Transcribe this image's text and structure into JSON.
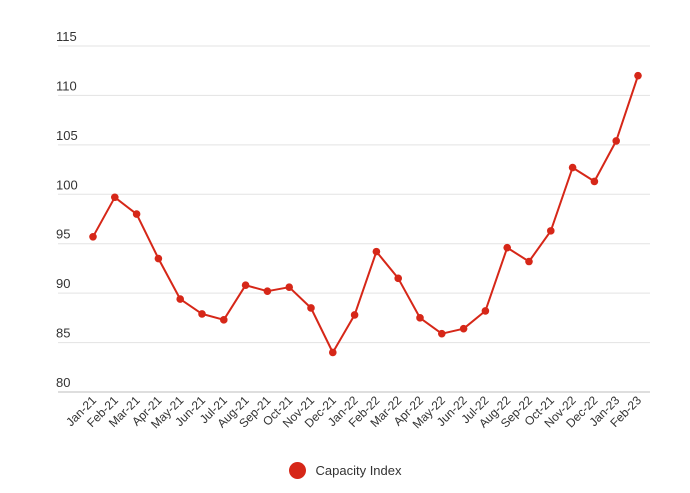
{
  "chart_data": {
    "type": "line",
    "title": "",
    "xlabel": "",
    "ylabel": "",
    "ylim": [
      80,
      115
    ],
    "y_ticks": [
      80,
      85,
      90,
      95,
      100,
      105,
      110,
      115
    ],
    "grid": true,
    "legend_position": "bottom",
    "series_color": "#d62718",
    "categories": [
      "Jan-21",
      "Feb-21",
      "Mar-21",
      "Apr-21",
      "May-21",
      "Jun-21",
      "Jul-21",
      "Aug-21",
      "Sep-21",
      "Oct-21",
      "Nov-21",
      "Dec-21",
      "Jan-22",
      "Feb-22",
      "Mar-22",
      "Apr-22",
      "May-22",
      "Jun-22",
      "Jul-22",
      "Aug-22",
      "Sep-22",
      "Oct-21",
      "Nov-22",
      "Dec-22",
      "Jan-23",
      "Feb-23"
    ],
    "series": [
      {
        "name": "Capacity Index",
        "values": [
          95.7,
          99.7,
          98.0,
          93.5,
          89.4,
          87.9,
          87.3,
          90.8,
          90.2,
          90.6,
          88.5,
          84.0,
          87.8,
          94.2,
          91.5,
          87.5,
          85.9,
          86.4,
          88.2,
          94.6,
          93.2,
          96.3,
          102.7,
          101.3,
          105.4,
          112.0
        ]
      }
    ]
  }
}
